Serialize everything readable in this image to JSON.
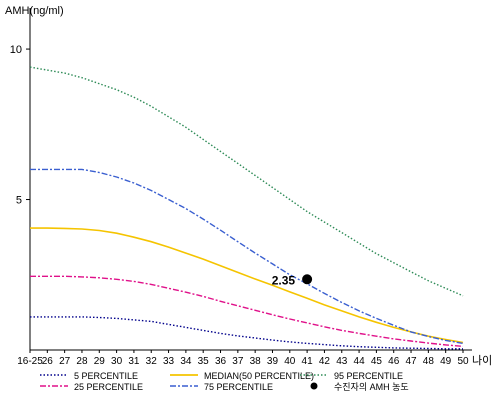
{
  "chart_data": {
    "type": "line",
    "ylabel": "AMH(ng/ml)",
    "xlabel": "나이",
    "x": [
      "16-25",
      "26",
      "27",
      "28",
      "29",
      "30",
      "31",
      "32",
      "33",
      "34",
      "35",
      "36",
      "37",
      "38",
      "39",
      "40",
      "41",
      "42",
      "43",
      "44",
      "45",
      "46",
      "47",
      "48",
      "49",
      "50"
    ],
    "yticks": [
      5,
      10
    ],
    "ylim": [
      0,
      10.8
    ],
    "grid": false,
    "legend_position": "bottom",
    "series": [
      {
        "name": "5 PERCENTILE",
        "color": "#00008b",
        "style": "dotted",
        "values": [
          1.1,
          1.1,
          1.1,
          1.1,
          1.08,
          1.05,
          1.0,
          0.95,
          0.85,
          0.75,
          0.65,
          0.55,
          0.47,
          0.4,
          0.33,
          0.27,
          0.22,
          0.18,
          0.14,
          0.11,
          0.09,
          0.07,
          0.06,
          0.05,
          0.04,
          0.04
        ]
      },
      {
        "name": "25 PERCENTILE",
        "color": "#e0118a",
        "style": "dashdot",
        "values": [
          2.45,
          2.45,
          2.45,
          2.43,
          2.4,
          2.35,
          2.28,
          2.18,
          2.05,
          1.92,
          1.78,
          1.62,
          1.47,
          1.32,
          1.17,
          1.03,
          0.9,
          0.77,
          0.65,
          0.55,
          0.46,
          0.37,
          0.3,
          0.23,
          0.17,
          0.12
        ]
      },
      {
        "name": "MEDIAN(50 PERCENTILE)",
        "color": "#f5c400",
        "style": "solid",
        "values": [
          4.05,
          4.05,
          4.04,
          4.02,
          3.97,
          3.88,
          3.75,
          3.6,
          3.42,
          3.22,
          3.02,
          2.8,
          2.58,
          2.36,
          2.15,
          1.93,
          1.72,
          1.5,
          1.3,
          1.1,
          0.92,
          0.75,
          0.6,
          0.46,
          0.35,
          0.25
        ]
      },
      {
        "name": "75 PERCENTILE",
        "color": "#3a5fd0",
        "style": "dashdot",
        "values": [
          6.0,
          6.0,
          6.0,
          6.0,
          5.9,
          5.75,
          5.55,
          5.3,
          5.0,
          4.7,
          4.35,
          3.98,
          3.6,
          3.22,
          2.86,
          2.5,
          2.2,
          1.88,
          1.58,
          1.3,
          1.05,
          0.82,
          0.6,
          0.45,
          0.32,
          0.22
        ]
      },
      {
        "name": "95 PERCENTILE",
        "color": "#2e8b57",
        "style": "dotted",
        "values": [
          9.4,
          9.3,
          9.2,
          9.05,
          8.85,
          8.65,
          8.4,
          8.1,
          7.75,
          7.4,
          7.0,
          6.6,
          6.2,
          5.8,
          5.4,
          5.0,
          4.6,
          4.25,
          3.9,
          3.55,
          3.2,
          2.9,
          2.6,
          2.3,
          2.05,
          1.8
        ]
      }
    ],
    "annotation": {
      "x": "41",
      "y": 2.35,
      "label": "2.35",
      "legend_label": "수진자의 AMH 농도"
    }
  }
}
